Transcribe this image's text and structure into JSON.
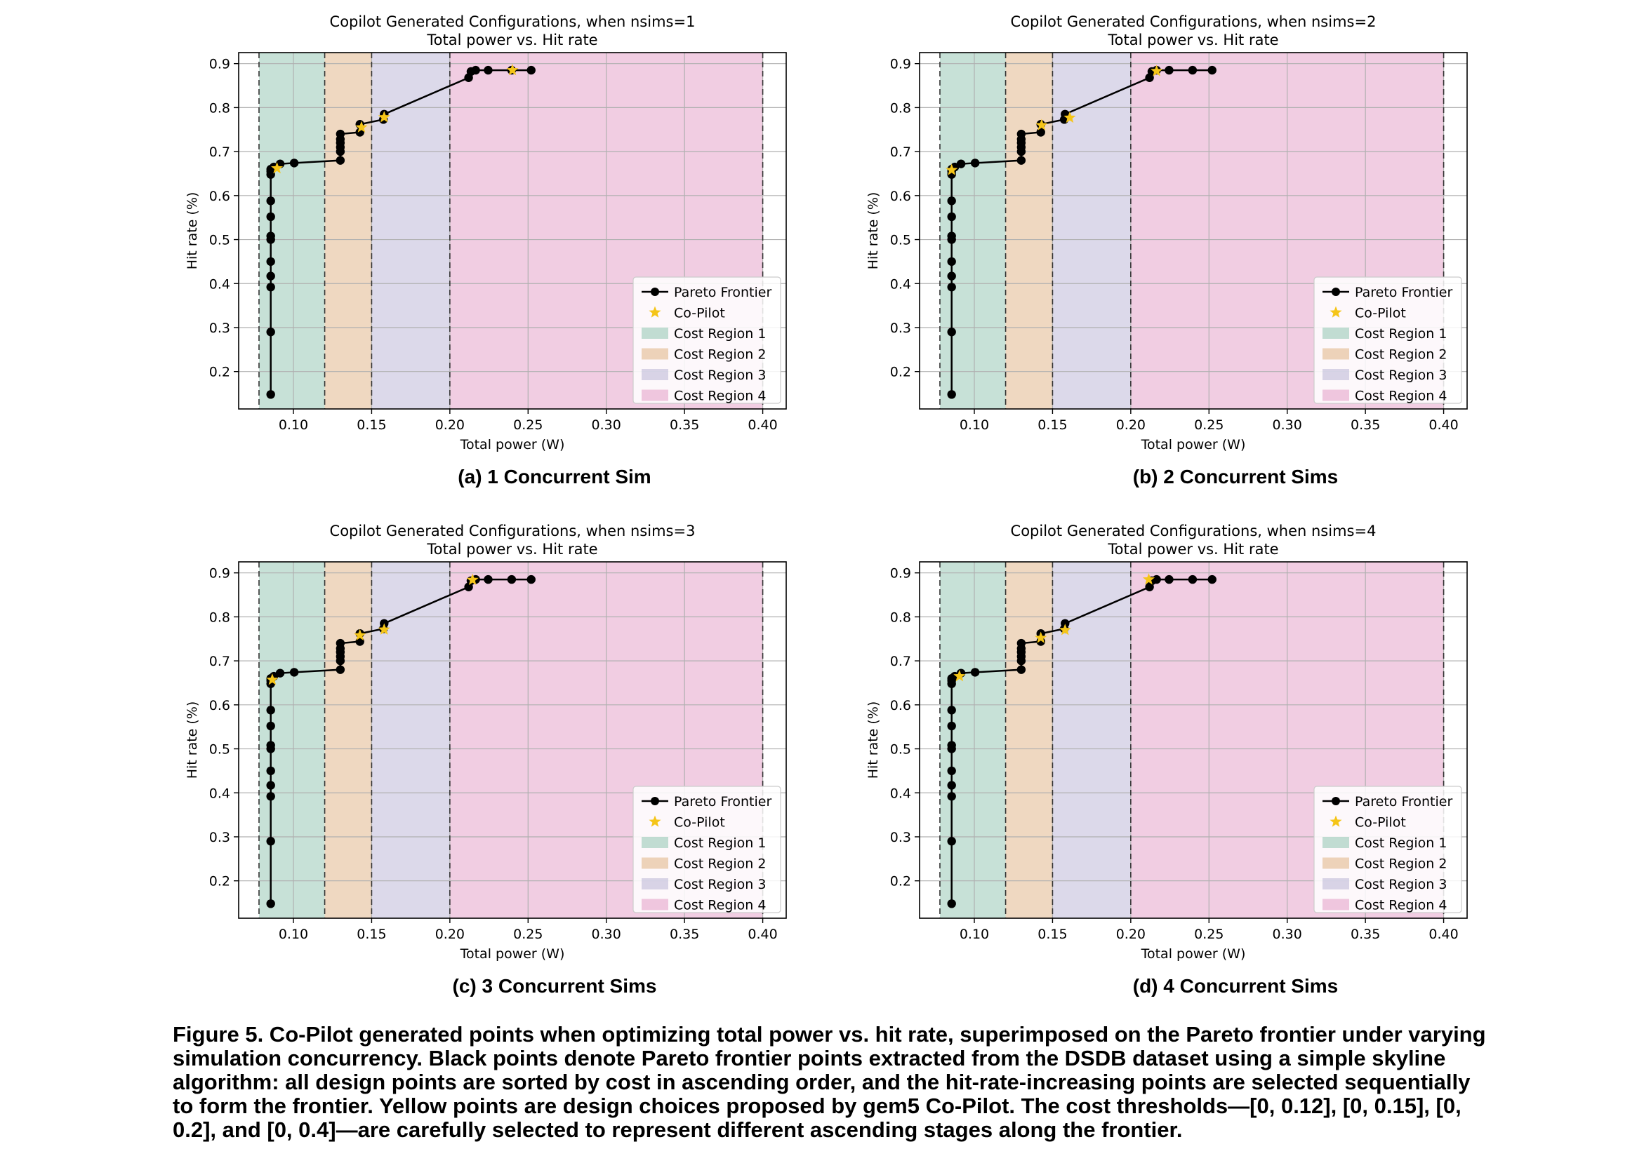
{
  "caption": "Figure 5. Co-Pilot generated points when optimizing total power vs. hit rate, superimposed on the Pareto frontier under varying simulation concurrency. Black points denote Pareto frontier points extracted from the DSDB dataset using a simple skyline algorithm: all design points are sorted by cost in ascending order, and the hit-rate-increasing points are selected sequentially to form the frontier. Yellow points are design choices proposed by gem5 Co-Pilot. The cost thresholds—[0, 0.12], [0, 0.15], [0, 0.2], and [0, 0.4]—are carefully selected to represent different ascending stages along the frontier.",
  "subcaptions": [
    "(a) 1 Concurrent Sim",
    "(b) 2 Concurrent Sims",
    "(c) 3 Concurrent Sims",
    "(d) 4 Concurrent Sims"
  ],
  "colors": {
    "frontier": "#000000",
    "copilot": "#f5c518",
    "region1": "#8fc4b0",
    "region2": "#e0b283",
    "region3": "#b9b4d6",
    "region4": "#e49cc6",
    "grid": "#b0b0b0"
  },
  "chart_data": [
    {
      "type": "line",
      "title": "Copilot Generated Configurations, when nsims=1",
      "subtitle": "Total power vs. Hit rate",
      "xlabel": "Total power (W)",
      "ylabel": "Hit rate (%)",
      "xlim": [
        0.065,
        0.415
      ],
      "ylim": [
        0.115,
        0.925
      ],
      "xticks": [
        "0.10",
        "0.15",
        "0.20",
        "0.25",
        "0.30",
        "0.35",
        "0.40"
      ],
      "yticks": [
        "0.2",
        "0.3",
        "0.4",
        "0.5",
        "0.6",
        "0.7",
        "0.8",
        "0.9"
      ],
      "grid": true,
      "legend_position": "lower-right",
      "legend": [
        "Pareto Frontier",
        "Co-Pilot",
        "Cost Region 1",
        "Cost Region 2",
        "Cost Region 3",
        "Cost Region 4"
      ],
      "regions": [
        [
          0.078,
          0.12
        ],
        [
          0.12,
          0.15
        ],
        [
          0.15,
          0.2
        ],
        [
          0.2,
          0.4
        ]
      ],
      "frontier": {
        "name": "Pareto Frontier",
        "x": [
          0.0855,
          0.0855,
          0.0855,
          0.0855,
          0.0855,
          0.0855,
          0.0855,
          0.0855,
          0.0855,
          0.0855,
          0.0855,
          0.0855,
          0.0875,
          0.0915,
          0.1005,
          0.13,
          0.13,
          0.13,
          0.13,
          0.13,
          0.13,
          0.1425,
          0.1425,
          0.1575,
          0.158,
          0.212,
          0.2135,
          0.2165,
          0.2245,
          0.2395,
          0.252
        ],
        "y": [
          0.148,
          0.29,
          0.392,
          0.417,
          0.45,
          0.5,
          0.508,
          0.552,
          0.588,
          0.648,
          0.655,
          0.66,
          0.665,
          0.672,
          0.674,
          0.68,
          0.7,
          0.71,
          0.72,
          0.728,
          0.74,
          0.744,
          0.762,
          0.773,
          0.785,
          0.868,
          0.882,
          0.885,
          0.885,
          0.885,
          0.885
        ]
      },
      "copilot": {
        "name": "Co-Pilot",
        "x": [
          0.0895,
          0.1435,
          0.158,
          0.24
        ],
        "y": [
          0.662,
          0.755,
          0.778,
          0.885
        ]
      }
    },
    {
      "type": "line",
      "title": "Copilot Generated Configurations, when nsims=2",
      "subtitle": "Total power vs. Hit rate",
      "xlabel": "Total power (W)",
      "ylabel": "Hit rate (%)",
      "xlim": [
        0.065,
        0.415
      ],
      "ylim": [
        0.115,
        0.925
      ],
      "xticks": [
        "0.10",
        "0.15",
        "0.20",
        "0.25",
        "0.30",
        "0.35",
        "0.40"
      ],
      "yticks": [
        "0.2",
        "0.3",
        "0.4",
        "0.5",
        "0.6",
        "0.7",
        "0.8",
        "0.9"
      ],
      "grid": true,
      "legend_position": "lower-right",
      "legend": [
        "Pareto Frontier",
        "Co-Pilot",
        "Cost Region 1",
        "Cost Region 2",
        "Cost Region 3",
        "Cost Region 4"
      ],
      "regions": [
        [
          0.078,
          0.12
        ],
        [
          0.12,
          0.15
        ],
        [
          0.15,
          0.2
        ],
        [
          0.2,
          0.4
        ]
      ],
      "frontier": {
        "name": "Pareto Frontier",
        "x": [
          0.0855,
          0.0855,
          0.0855,
          0.0855,
          0.0855,
          0.0855,
          0.0855,
          0.0855,
          0.0855,
          0.0855,
          0.0855,
          0.0855,
          0.0875,
          0.0915,
          0.1005,
          0.13,
          0.13,
          0.13,
          0.13,
          0.13,
          0.13,
          0.1425,
          0.1425,
          0.1575,
          0.158,
          0.212,
          0.2135,
          0.2165,
          0.2245,
          0.2395,
          0.252
        ],
        "y": [
          0.148,
          0.29,
          0.392,
          0.417,
          0.45,
          0.5,
          0.508,
          0.552,
          0.588,
          0.648,
          0.655,
          0.66,
          0.665,
          0.672,
          0.674,
          0.68,
          0.7,
          0.71,
          0.72,
          0.728,
          0.74,
          0.744,
          0.762,
          0.773,
          0.785,
          0.868,
          0.882,
          0.885,
          0.885,
          0.885,
          0.885
        ]
      },
      "copilot": {
        "name": "Co-Pilot",
        "x": [
          0.0855,
          0.143,
          0.161,
          0.2165
        ],
        "y": [
          0.658,
          0.76,
          0.777,
          0.883
        ]
      }
    },
    {
      "type": "line",
      "title": "Copilot Generated Configurations, when nsims=3",
      "subtitle": "Total power vs. Hit rate",
      "xlabel": "Total power (W)",
      "ylabel": "Hit rate (%)",
      "xlim": [
        0.065,
        0.415
      ],
      "ylim": [
        0.115,
        0.925
      ],
      "xticks": [
        "0.10",
        "0.15",
        "0.20",
        "0.25",
        "0.30",
        "0.35",
        "0.40"
      ],
      "yticks": [
        "0.2",
        "0.3",
        "0.4",
        "0.5",
        "0.6",
        "0.7",
        "0.8",
        "0.9"
      ],
      "grid": true,
      "legend_position": "lower-right",
      "legend": [
        "Pareto Frontier",
        "Co-Pilot",
        "Cost Region 1",
        "Cost Region 2",
        "Cost Region 3",
        "Cost Region 4"
      ],
      "regions": [
        [
          0.078,
          0.12
        ],
        [
          0.12,
          0.15
        ],
        [
          0.15,
          0.2
        ],
        [
          0.2,
          0.4
        ]
      ],
      "frontier": {
        "name": "Pareto Frontier",
        "x": [
          0.0855,
          0.0855,
          0.0855,
          0.0855,
          0.0855,
          0.0855,
          0.0855,
          0.0855,
          0.0855,
          0.0855,
          0.0855,
          0.0855,
          0.0875,
          0.0915,
          0.1005,
          0.13,
          0.13,
          0.13,
          0.13,
          0.13,
          0.13,
          0.1425,
          0.1425,
          0.1575,
          0.158,
          0.212,
          0.2135,
          0.2165,
          0.2245,
          0.2395,
          0.252
        ],
        "y": [
          0.148,
          0.29,
          0.392,
          0.417,
          0.45,
          0.5,
          0.508,
          0.552,
          0.588,
          0.648,
          0.655,
          0.66,
          0.665,
          0.672,
          0.674,
          0.68,
          0.7,
          0.71,
          0.72,
          0.728,
          0.74,
          0.744,
          0.762,
          0.773,
          0.785,
          0.868,
          0.882,
          0.885,
          0.885,
          0.885,
          0.885
        ]
      },
      "copilot": {
        "name": "Co-Pilot",
        "x": [
          0.0865,
          0.1425,
          0.158,
          0.2145
        ],
        "y": [
          0.657,
          0.758,
          0.771,
          0.884
        ]
      }
    },
    {
      "type": "line",
      "title": "Copilot Generated Configurations, when nsims=4",
      "subtitle": "Total power vs. Hit rate",
      "xlabel": "Total power (W)",
      "ylabel": "Hit rate (%)",
      "xlim": [
        0.065,
        0.415
      ],
      "ylim": [
        0.115,
        0.925
      ],
      "xticks": [
        "0.10",
        "0.15",
        "0.20",
        "0.25",
        "0.30",
        "0.35",
        "0.40"
      ],
      "yticks": [
        "0.2",
        "0.3",
        "0.4",
        "0.5",
        "0.6",
        "0.7",
        "0.8",
        "0.9"
      ],
      "grid": true,
      "legend_position": "lower-right",
      "legend": [
        "Pareto Frontier",
        "Co-Pilot",
        "Cost Region 1",
        "Cost Region 2",
        "Cost Region 3",
        "Cost Region 4"
      ],
      "regions": [
        [
          0.078,
          0.12
        ],
        [
          0.12,
          0.15
        ],
        [
          0.15,
          0.2
        ],
        [
          0.2,
          0.4
        ]
      ],
      "frontier": {
        "name": "Pareto Frontier",
        "x": [
          0.0855,
          0.0855,
          0.0855,
          0.0855,
          0.0855,
          0.0855,
          0.0855,
          0.0855,
          0.0855,
          0.0855,
          0.0855,
          0.0855,
          0.0875,
          0.0915,
          0.1005,
          0.13,
          0.13,
          0.13,
          0.13,
          0.13,
          0.13,
          0.1425,
          0.1425,
          0.1575,
          0.158,
          0.212,
          0.2135,
          0.2165,
          0.2245,
          0.2395,
          0.252
        ],
        "y": [
          0.148,
          0.29,
          0.392,
          0.417,
          0.45,
          0.5,
          0.508,
          0.552,
          0.588,
          0.648,
          0.655,
          0.66,
          0.665,
          0.672,
          0.674,
          0.68,
          0.7,
          0.71,
          0.72,
          0.728,
          0.74,
          0.744,
          0.762,
          0.773,
          0.785,
          0.868,
          0.882,
          0.885,
          0.885,
          0.885,
          0.885
        ]
      },
      "copilot": {
        "name": "Co-Pilot",
        "x": [
          0.0905,
          0.1425,
          0.158,
          0.2115
        ],
        "y": [
          0.665,
          0.752,
          0.77,
          0.885
        ]
      }
    }
  ]
}
